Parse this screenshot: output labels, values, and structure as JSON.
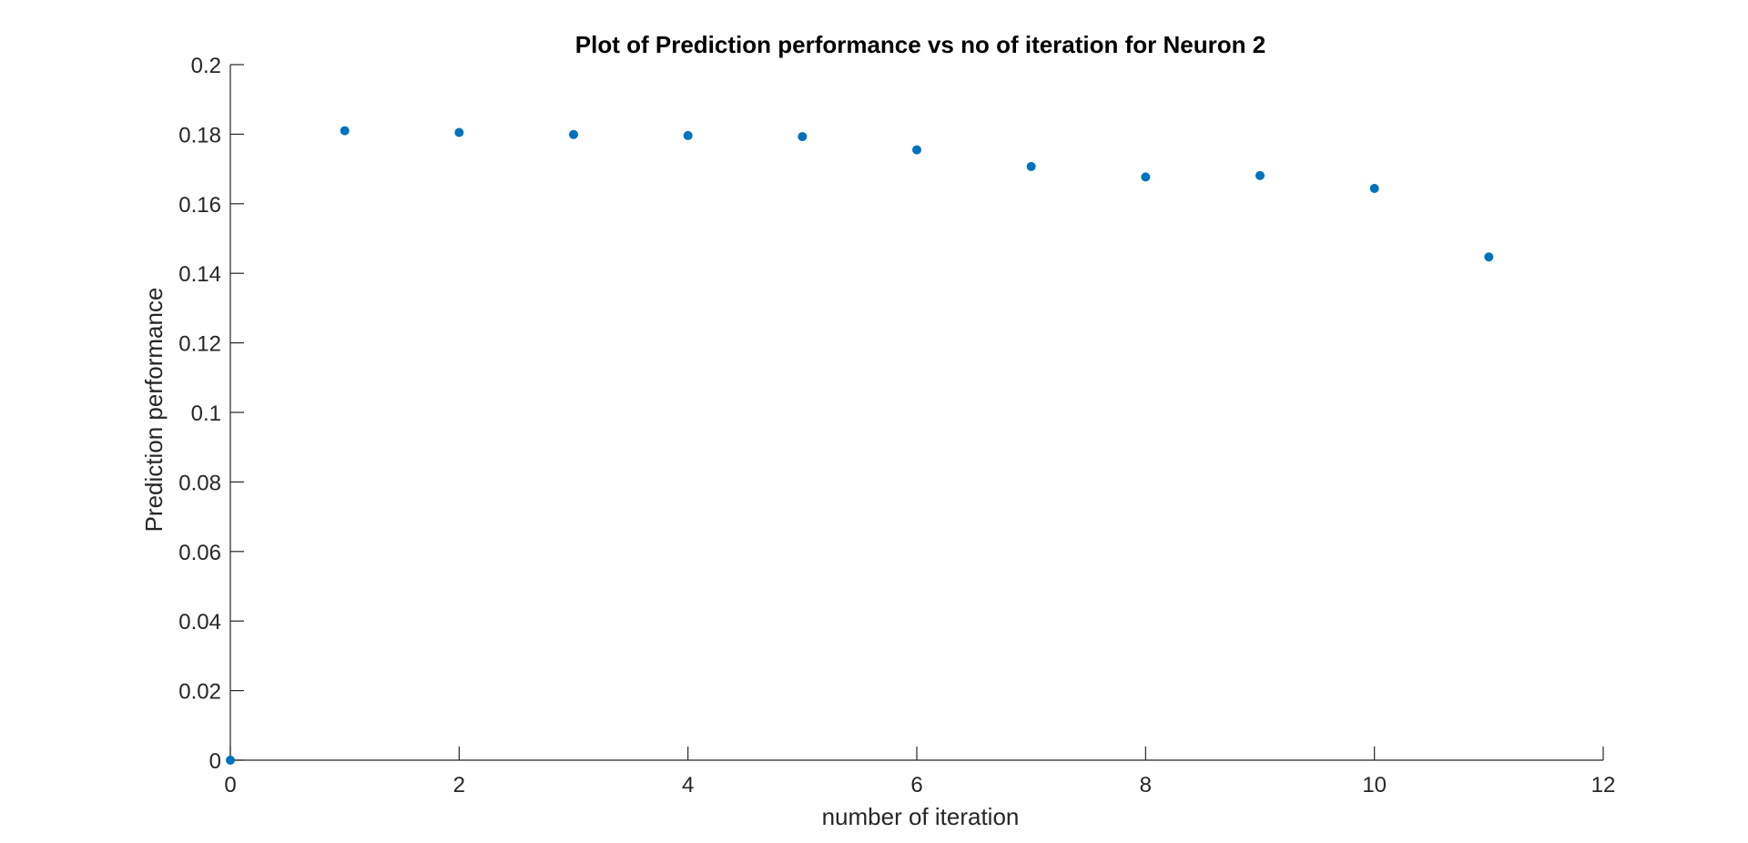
{
  "chart_data": {
    "type": "scatter",
    "title": "Plot of Prediction performance vs no of iteration for Neuron 2",
    "xlabel": "number of iteration",
    "ylabel": "Prediction performance",
    "xlim": [
      0,
      12
    ],
    "ylim": [
      0,
      0.2
    ],
    "x_ticks": [
      "0",
      "2",
      "4",
      "6",
      "8",
      "10",
      "12"
    ],
    "y_ticks": [
      "0",
      "0.02",
      "0.04",
      "0.06",
      "0.08",
      "0.1",
      "0.12",
      "0.14",
      "0.16",
      "0.18",
      "0.2"
    ],
    "grid": false,
    "marker_color": "#0072BD",
    "points": [
      {
        "x": 0,
        "y": 0
      },
      {
        "x": 1,
        "y": 0.181
      },
      {
        "x": 2,
        "y": 0.1805
      },
      {
        "x": 3,
        "y": 0.1799
      },
      {
        "x": 4,
        "y": 0.1796
      },
      {
        "x": 5,
        "y": 0.1793
      },
      {
        "x": 6,
        "y": 0.1755
      },
      {
        "x": 7,
        "y": 0.1707
      },
      {
        "x": 8,
        "y": 0.1677
      },
      {
        "x": 9,
        "y": 0.1681
      },
      {
        "x": 10,
        "y": 0.1644
      },
      {
        "x": 11,
        "y": 0.1447
      }
    ]
  }
}
